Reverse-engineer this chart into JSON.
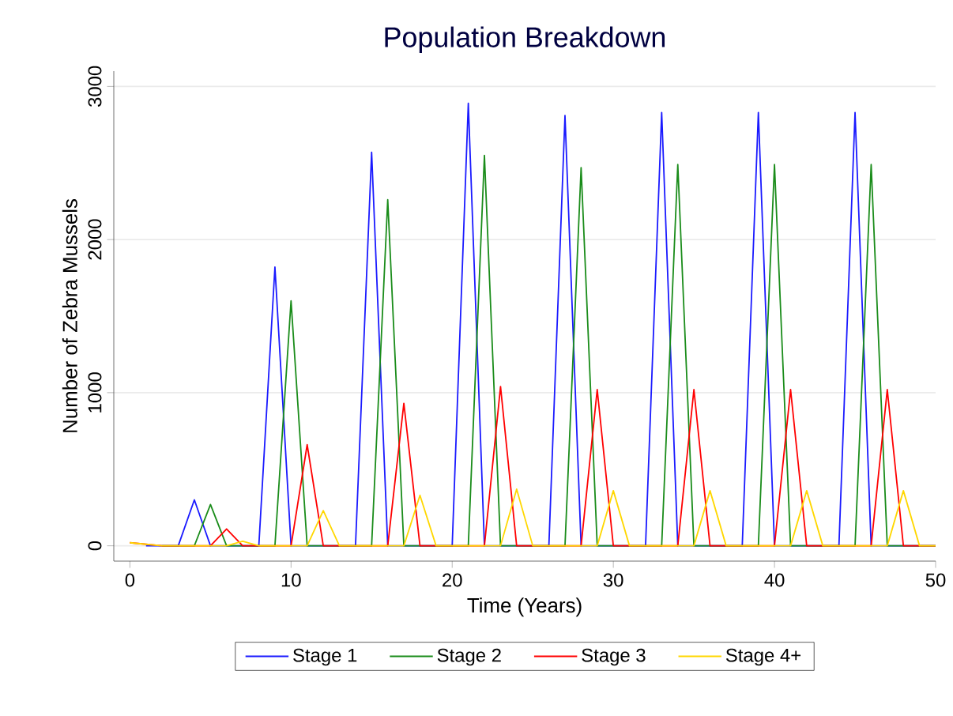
{
  "chart_data": {
    "type": "line",
    "title": "Population Breakdown",
    "xlabel": "Time (Years)",
    "ylabel": "Number of Zebra Mussels",
    "xlim": [
      -1,
      50
    ],
    "ylim": [
      -100,
      3100
    ],
    "xticks": [
      0,
      10,
      20,
      30,
      40,
      50
    ],
    "yticks": [
      0,
      1000,
      2000,
      3000
    ],
    "grid": "y",
    "legend": "bottom",
    "series": [
      {
        "name": "Stage 1",
        "color": "#1a1aff",
        "x": [
          1,
          3,
          4,
          5,
          8,
          9,
          10,
          14,
          15,
          16,
          20,
          21,
          22,
          26,
          27,
          28,
          32,
          33,
          34,
          38,
          39,
          40,
          44,
          45,
          46,
          50
        ],
        "values": [
          0,
          0,
          300,
          0,
          0,
          1820,
          0,
          0,
          2570,
          0,
          0,
          2890,
          0,
          0,
          2810,
          0,
          0,
          2830,
          0,
          0,
          2830,
          0,
          0,
          2830,
          0,
          0
        ]
      },
      {
        "name": "Stage 2",
        "color": "#1a8c1a",
        "x": [
          2,
          4,
          5,
          6,
          9,
          10,
          11,
          15,
          16,
          17,
          21,
          22,
          23,
          27,
          28,
          29,
          33,
          34,
          35,
          39,
          40,
          41,
          45,
          46,
          47,
          50
        ],
        "values": [
          0,
          0,
          270,
          0,
          0,
          1600,
          0,
          0,
          2260,
          0,
          0,
          2550,
          0,
          0,
          2470,
          0,
          0,
          2490,
          0,
          0,
          2490,
          0,
          0,
          2490,
          0,
          0
        ]
      },
      {
        "name": "Stage 3",
        "color": "#ff0000",
        "x": [
          0,
          2,
          5,
          6,
          7,
          10,
          11,
          12,
          16,
          17,
          18,
          22,
          23,
          24,
          28,
          29,
          30,
          34,
          35,
          36,
          40,
          41,
          42,
          46,
          47,
          48,
          50
        ],
        "values": [
          20,
          0,
          0,
          110,
          0,
          0,
          660,
          0,
          0,
          930,
          0,
          0,
          1040,
          0,
          0,
          1020,
          0,
          0,
          1020,
          0,
          0,
          1020,
          0,
          0,
          1020,
          0,
          0
        ]
      },
      {
        "name": "Stage 4+",
        "color": "#ffd700",
        "x": [
          0,
          2,
          6,
          7,
          8,
          11,
          12,
          13,
          17,
          18,
          19,
          23,
          24,
          25,
          29,
          30,
          31,
          35,
          36,
          37,
          41,
          42,
          43,
          47,
          48,
          49,
          50
        ],
        "values": [
          20,
          0,
          0,
          30,
          0,
          0,
          230,
          0,
          0,
          330,
          0,
          0,
          370,
          0,
          0,
          360,
          0,
          0,
          360,
          0,
          0,
          360,
          0,
          0,
          360,
          0,
          0
        ]
      }
    ]
  }
}
